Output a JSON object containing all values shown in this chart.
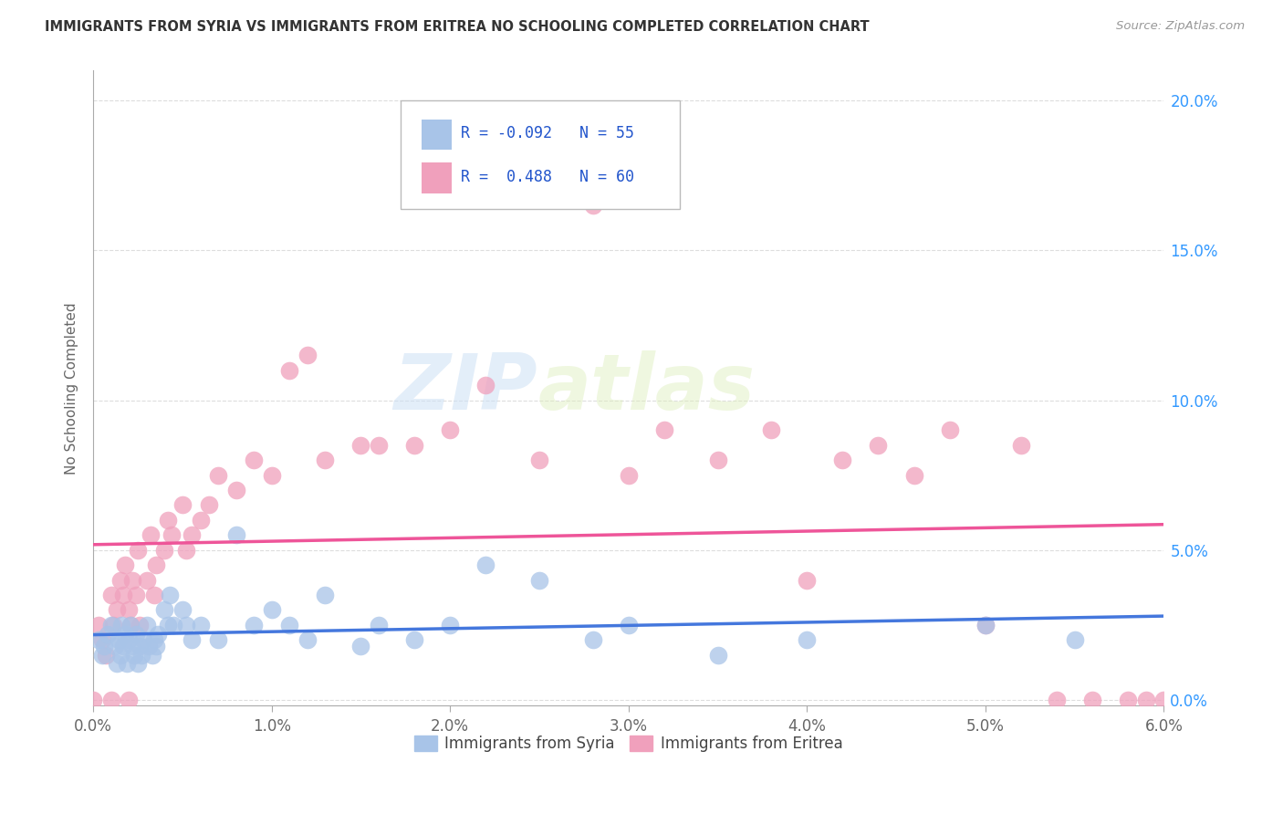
{
  "title": "IMMIGRANTS FROM SYRIA VS IMMIGRANTS FROM ERITREA NO SCHOOLING COMPLETED CORRELATION CHART",
  "source": "Source: ZipAtlas.com",
  "ylabel": "No Schooling Completed",
  "xlim": [
    0.0,
    0.06
  ],
  "ylim": [
    -0.002,
    0.21
  ],
  "ytick_labels": [
    "0.0%",
    "5.0%",
    "10.0%",
    "15.0%",
    "20.0%"
  ],
  "ytick_vals": [
    0.0,
    0.05,
    0.1,
    0.15,
    0.2
  ],
  "xtick_labels": [
    "0.0%",
    "1.0%",
    "2.0%",
    "3.0%",
    "4.0%",
    "5.0%",
    "6.0%"
  ],
  "xtick_vals": [
    0.0,
    0.01,
    0.02,
    0.03,
    0.04,
    0.05,
    0.06
  ],
  "syria_color": "#a8c4e8",
  "eritrea_color": "#f0a0bc",
  "syria_R": -0.092,
  "syria_N": 55,
  "eritrea_R": 0.488,
  "eritrea_N": 60,
  "legend_R_color": "#2255cc",
  "background_color": "#ffffff",
  "grid_color": "#dddddd",
  "watermark_zip": "ZIP",
  "watermark_atlas": "atlas",
  "syria_line_color": "#4477dd",
  "eritrea_line_color": "#ee5599",
  "syria_scatter_x": [
    0.0003,
    0.0005,
    0.0006,
    0.0008,
    0.001,
    0.0012,
    0.0013,
    0.0014,
    0.0015,
    0.0016,
    0.0017,
    0.0018,
    0.0019,
    0.002,
    0.0021,
    0.0022,
    0.0023,
    0.0024,
    0.0025,
    0.0026,
    0.0027,
    0.0028,
    0.003,
    0.0031,
    0.0033,
    0.0034,
    0.0035,
    0.0036,
    0.004,
    0.0042,
    0.0043,
    0.0045,
    0.005,
    0.0052,
    0.0055,
    0.006,
    0.007,
    0.008,
    0.009,
    0.01,
    0.011,
    0.012,
    0.013,
    0.015,
    0.016,
    0.018,
    0.02,
    0.022,
    0.025,
    0.028,
    0.03,
    0.035,
    0.04,
    0.05,
    0.055
  ],
  "syria_scatter_y": [
    0.02,
    0.015,
    0.018,
    0.022,
    0.025,
    0.018,
    0.012,
    0.02,
    0.015,
    0.025,
    0.018,
    0.022,
    0.012,
    0.02,
    0.025,
    0.018,
    0.015,
    0.022,
    0.012,
    0.018,
    0.015,
    0.02,
    0.025,
    0.018,
    0.015,
    0.02,
    0.018,
    0.022,
    0.03,
    0.025,
    0.035,
    0.025,
    0.03,
    0.025,
    0.02,
    0.025,
    0.02,
    0.055,
    0.025,
    0.03,
    0.025,
    0.02,
    0.035,
    0.018,
    0.025,
    0.02,
    0.025,
    0.045,
    0.04,
    0.02,
    0.025,
    0.015,
    0.02,
    0.025,
    0.02
  ],
  "eritrea_scatter_x": [
    0.0003,
    0.0005,
    0.0007,
    0.001,
    0.0011,
    0.0013,
    0.0015,
    0.0017,
    0.0018,
    0.002,
    0.0021,
    0.0022,
    0.0024,
    0.0025,
    0.0026,
    0.003,
    0.0032,
    0.0034,
    0.0035,
    0.004,
    0.0042,
    0.0044,
    0.005,
    0.0052,
    0.0055,
    0.006,
    0.0065,
    0.007,
    0.008,
    0.009,
    0.01,
    0.011,
    0.012,
    0.013,
    0.015,
    0.016,
    0.018,
    0.02,
    0.022,
    0.025,
    0.028,
    0.03,
    0.032,
    0.035,
    0.038,
    0.04,
    0.042,
    0.044,
    0.046,
    0.048,
    0.05,
    0.052,
    0.054,
    0.056,
    0.058,
    0.059,
    0.06,
    0.0,
    0.001,
    0.002
  ],
  "eritrea_scatter_y": [
    0.025,
    0.02,
    0.015,
    0.035,
    0.025,
    0.03,
    0.04,
    0.035,
    0.045,
    0.03,
    0.025,
    0.04,
    0.035,
    0.05,
    0.025,
    0.04,
    0.055,
    0.035,
    0.045,
    0.05,
    0.06,
    0.055,
    0.065,
    0.05,
    0.055,
    0.06,
    0.065,
    0.075,
    0.07,
    0.08,
    0.075,
    0.11,
    0.115,
    0.08,
    0.085,
    0.085,
    0.085,
    0.09,
    0.105,
    0.08,
    0.165,
    0.075,
    0.09,
    0.08,
    0.09,
    0.04,
    0.08,
    0.085,
    0.075,
    0.09,
    0.025,
    0.085,
    0.0,
    0.0,
    0.0,
    0.0,
    0.0,
    0.0,
    0.0,
    0.0
  ]
}
